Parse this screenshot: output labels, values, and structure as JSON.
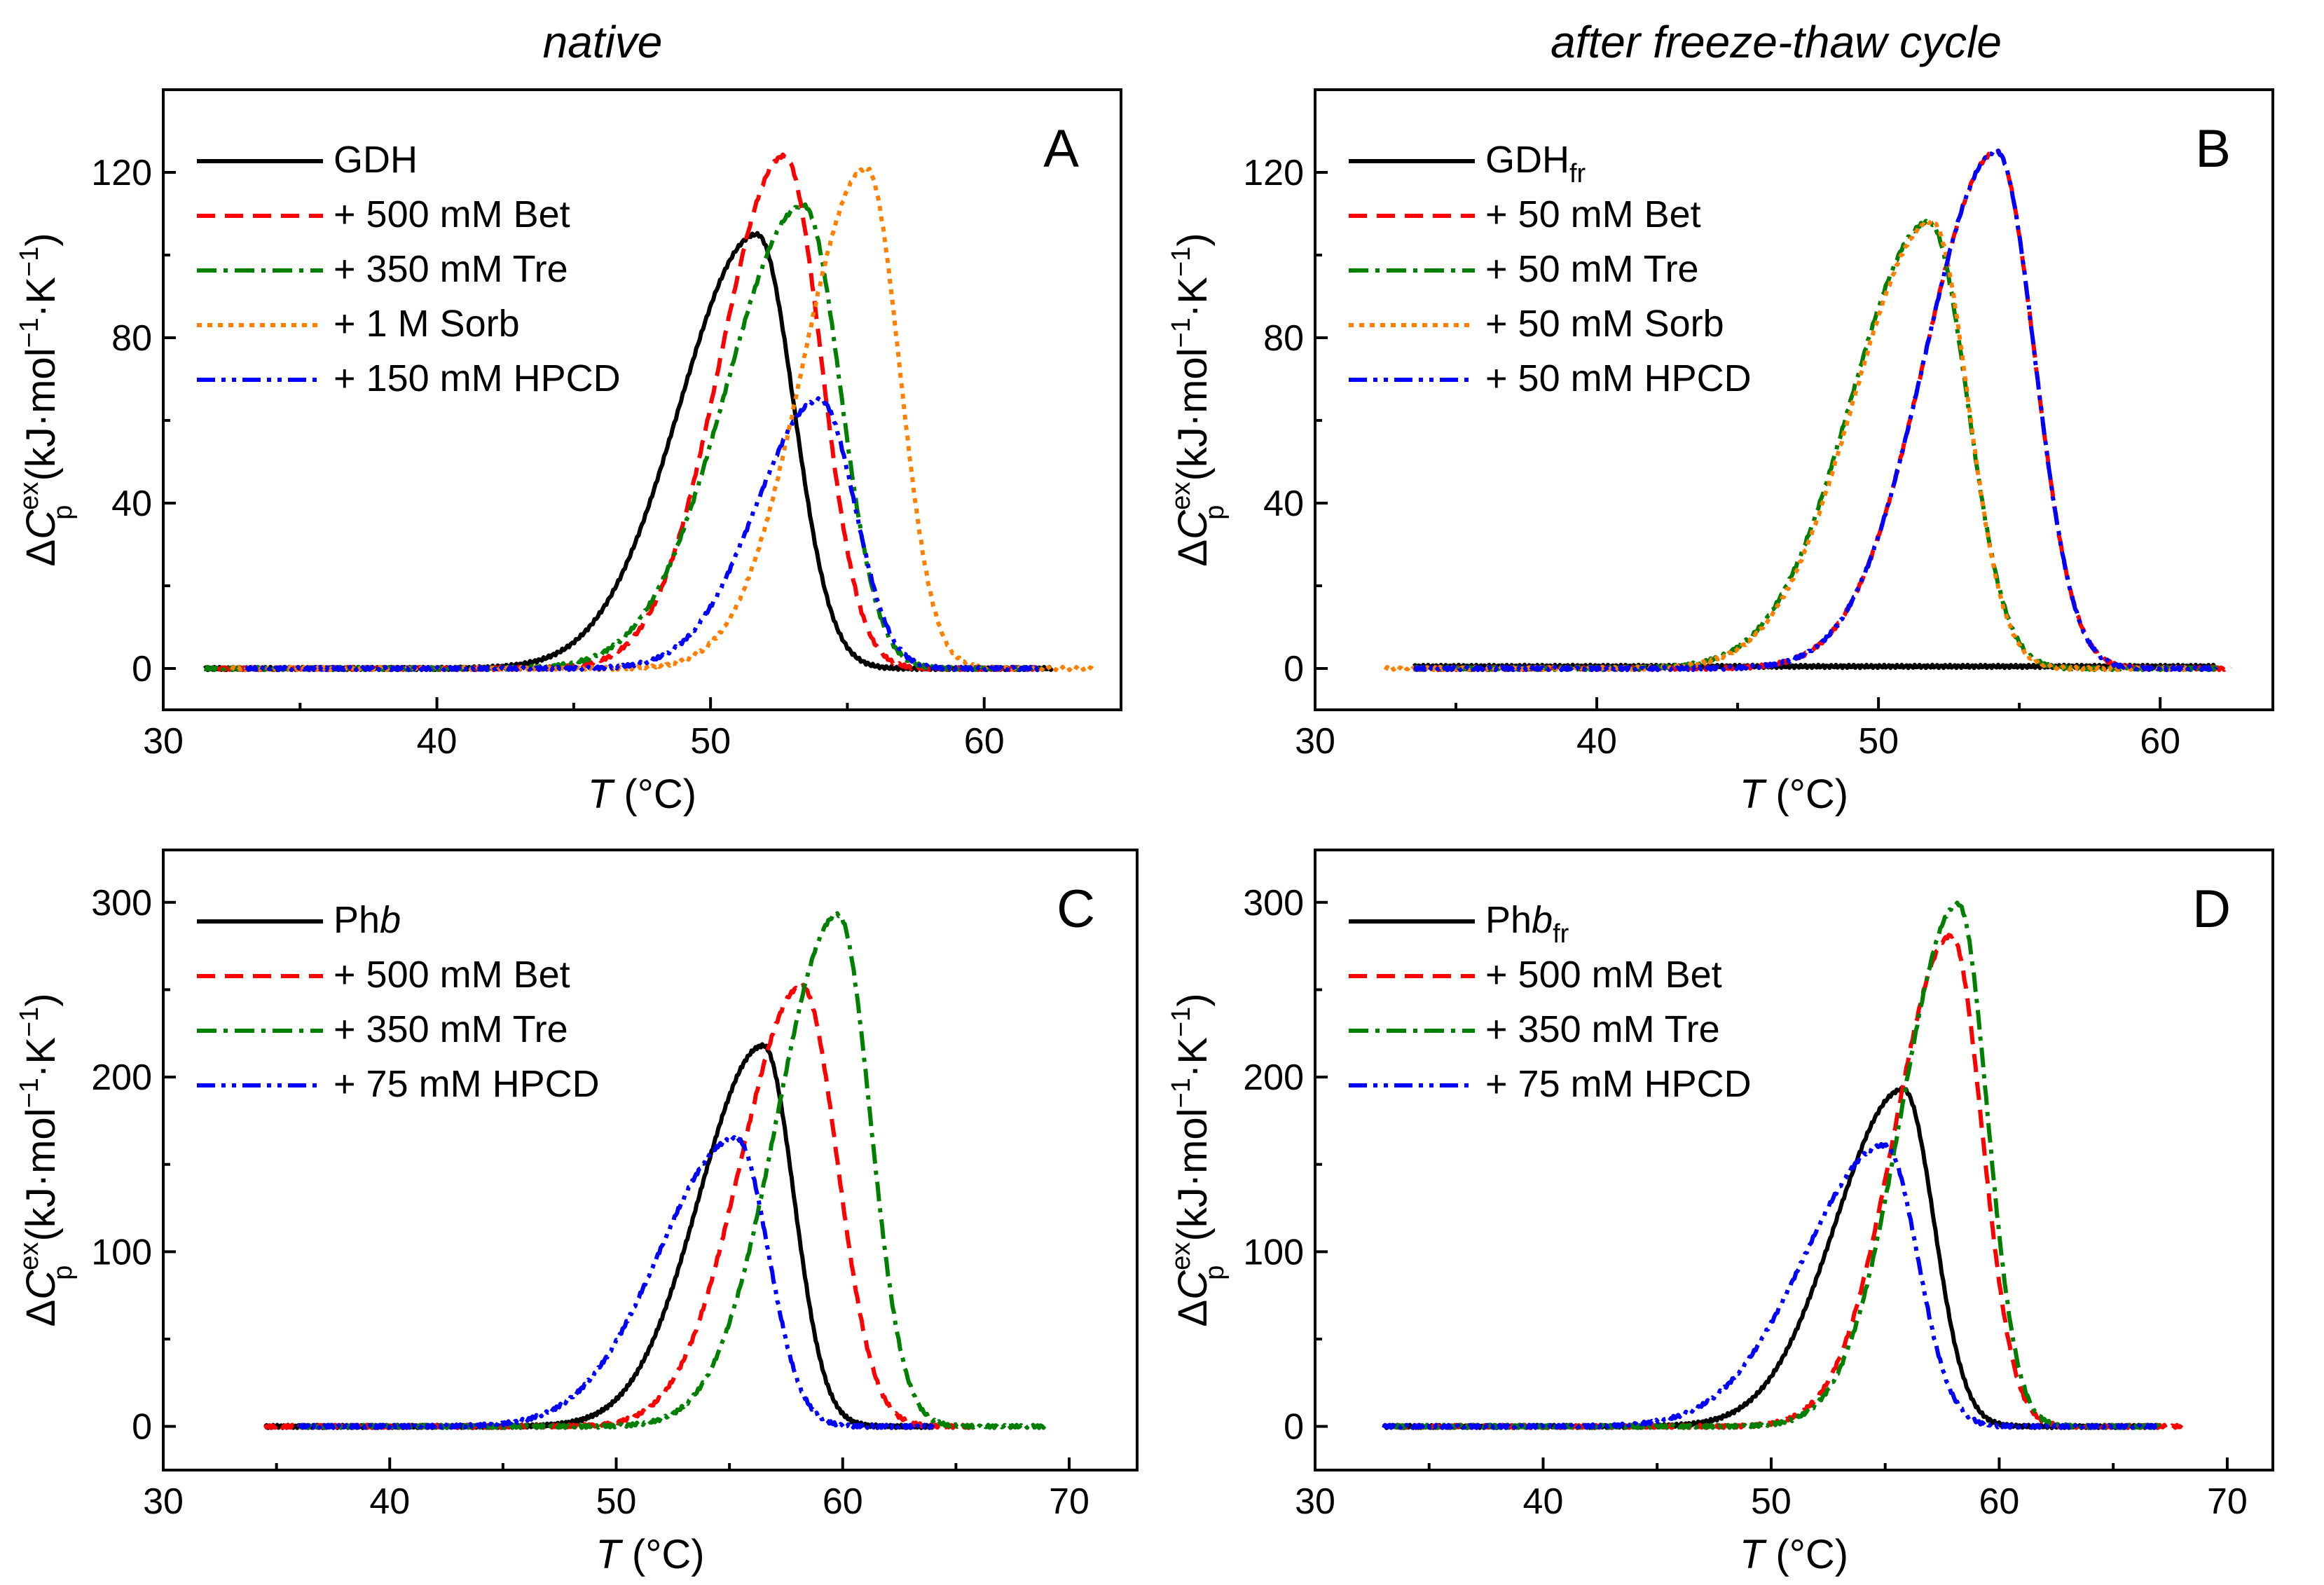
{
  "column_titles": {
    "left": "native",
    "right": "after freeze-thaw cycle"
  },
  "axis_labels": {
    "x": {
      "var": "T",
      "unit": " (°C)"
    },
    "y": {
      "pre": "ΔC",
      "sub": "p",
      "sup": "ex",
      "unit1": " (kJ·mol",
      "exp1": "−1",
      "mid": "·K",
      "exp2": "−1",
      "close": ")"
    }
  },
  "chart_data": [
    {
      "panel": "A",
      "type": "line",
      "xlabel": "T (°C)",
      "ylabel": "ΔCp ex (kJ·mol−1·K−1)",
      "xlim": [
        30,
        65
      ],
      "ylim": [
        -10,
        140
      ],
      "xticks": [
        30,
        40,
        50,
        60
      ],
      "yticks": [
        0,
        40,
        80,
        120
      ],
      "series": [
        {
          "name": "GDH",
          "sub": "",
          "color": "#000000",
          "dash": "solid",
          "peak": 105,
          "center": 51.7,
          "wl": 4.0,
          "wr": 1.9,
          "start": 31.5,
          "end": 62.5,
          "offset": 0
        },
        {
          "name": "+ 500 mM Bet",
          "sub": "",
          "color": "#ff0000",
          "dash": "dash",
          "peak": 124,
          "center": 52.7,
          "wl": 3.3,
          "wr": 1.9,
          "start": 32,
          "end": 62,
          "offset": 0
        },
        {
          "name": "+ 350 mM Tre",
          "sub": "",
          "color": "#008000",
          "dash": "dashdot",
          "peak": 112,
          "center": 53.4,
          "wl": 4.0,
          "wr": 1.9,
          "start": 31.5,
          "end": 62,
          "offset": 0
        },
        {
          "name": "+ 1 M Sorb",
          "sub": "",
          "color": "#ff7f00",
          "dash": "dot",
          "peak": 121,
          "center": 55.7,
          "wl": 3.3,
          "wr": 1.7,
          "start": 32.5,
          "end": 64,
          "offset": 0
        },
        {
          "name": "+ 150 mM HPCD",
          "sub": "",
          "color": "#0000ff",
          "dash": "dashdotdot",
          "peak": 65,
          "center": 54.0,
          "wl": 3.3,
          "wr": 1.8,
          "start": 33,
          "end": 62,
          "offset": 0
        }
      ]
    },
    {
      "panel": "B",
      "type": "line",
      "xlabel": "T (°C)",
      "ylabel": "ΔCp ex (kJ·mol−1·K−1)",
      "xlim": [
        30,
        64
      ],
      "ylim": [
        -10,
        140
      ],
      "xticks": [
        30,
        40,
        50,
        60
      ],
      "yticks": [
        0,
        40,
        80,
        120
      ],
      "series": [
        {
          "name": "GDH",
          "sub": "fr",
          "color": "#000000",
          "dash": "solid",
          "peak": 0,
          "center": 50,
          "wl": 3,
          "wr": 2,
          "start": 33.5,
          "end": 62,
          "offset": 0.5
        },
        {
          "name": "+ 50 mM Bet",
          "sub": "",
          "color": "#ff0000",
          "dash": "dash",
          "peak": 125,
          "center": 54.2,
          "wl": 3.6,
          "wr": 1.9,
          "start": 33.5,
          "end": 62.5,
          "offset": 0
        },
        {
          "name": "+ 50 mM Tre",
          "sub": "",
          "color": "#008000",
          "dash": "dashdot",
          "peak": 108,
          "center": 51.8,
          "wl": 3.9,
          "wr": 1.9,
          "start": 33.5,
          "end": 62,
          "offset": 0
        },
        {
          "name": "+ 50 mM Sorb",
          "sub": "",
          "color": "#ff7f00",
          "dash": "dot",
          "peak": 108,
          "center": 51.9,
          "wl": 3.9,
          "wr": 1.8,
          "start": 32.5,
          "end": 61,
          "offset": 0
        },
        {
          "name": "+ 50 mM HPCD",
          "sub": "",
          "color": "#0000ff",
          "dash": "dashdotdot",
          "peak": 125,
          "center": 54.2,
          "wl": 3.6,
          "wr": 1.9,
          "start": 33.5,
          "end": 62,
          "offset": 0
        }
      ]
    },
    {
      "panel": "C",
      "type": "line",
      "xlabel": "T (°C)",
      "ylabel": "ΔCp ex (kJ·mol−1·K−1)",
      "xlim": [
        30,
        73
      ],
      "ylim": [
        -25,
        330
      ],
      "xticks": [
        30,
        40,
        50,
        60,
        70
      ],
      "yticks": [
        0,
        100,
        200,
        300
      ],
      "series": [
        {
          "name": "Ph",
          "sub": "",
          "italic": "b",
          "color": "#000000",
          "dash": "solid",
          "peak": 218,
          "center": 56.5,
          "wl": 4.0,
          "wr": 1.9,
          "start": 34.5,
          "end": 64,
          "offset": 0
        },
        {
          "name": "+ 500 mM Bet",
          "sub": "",
          "color": "#ff0000",
          "dash": "dash",
          "peak": 252,
          "center": 58.2,
          "wl": 3.8,
          "wr": 2.2,
          "start": 34.5,
          "end": 66,
          "offset": 0
        },
        {
          "name": "+ 350 mM Tre",
          "sub": "",
          "color": "#008000",
          "dash": "dashdot",
          "peak": 293,
          "center": 59.8,
          "wl": 3.8,
          "wr": 2.0,
          "start": 36,
          "end": 69,
          "offset": 0
        },
        {
          "name": "+ 75 mM HPCD",
          "sub": "",
          "color": "#0000ff",
          "dash": "dashdotdot",
          "peak": 165,
          "center": 55.3,
          "wl": 4.8,
          "wr": 2.0,
          "start": 36,
          "end": 64,
          "offset": 0
        }
      ]
    },
    {
      "panel": "D",
      "type": "line",
      "xlabel": "T (°C)",
      "ylabel": "ΔCp ex (kJ·mol−1·K−1)",
      "xlim": [
        30,
        72
      ],
      "ylim": [
        -25,
        330
      ],
      "xticks": [
        30,
        40,
        50,
        60,
        70
      ],
      "yticks": [
        0,
        100,
        200,
        300
      ],
      "series": [
        {
          "name": "Ph",
          "sub": "fr",
          "italic": "b",
          "color": "#000000",
          "dash": "solid",
          "peak": 193,
          "center": 55.8,
          "wl": 4.2,
          "wr": 1.9,
          "start": 33,
          "end": 67,
          "offset": 0
        },
        {
          "name": "+ 500 mM Bet",
          "sub": "",
          "color": "#ff0000",
          "dash": "dash",
          "peak": 281,
          "center": 57.9,
          "wl": 3.5,
          "wr": 1.9,
          "start": 33.5,
          "end": 68,
          "offset": 0
        },
        {
          "name": "+ 350 mM Tre",
          "sub": "",
          "color": "#008000",
          "dash": "dashdot",
          "peak": 299,
          "center": 58.2,
          "wl": 3.5,
          "wr": 1.8,
          "start": 33.5,
          "end": 67,
          "offset": 0
        },
        {
          "name": "+ 75 mM HPCD",
          "sub": "",
          "color": "#0000ff",
          "dash": "dashdotdot",
          "peak": 161,
          "center": 55.0,
          "wl": 5.0,
          "wr": 2.0,
          "start": 33,
          "end": 67,
          "offset": 0
        }
      ]
    }
  ]
}
